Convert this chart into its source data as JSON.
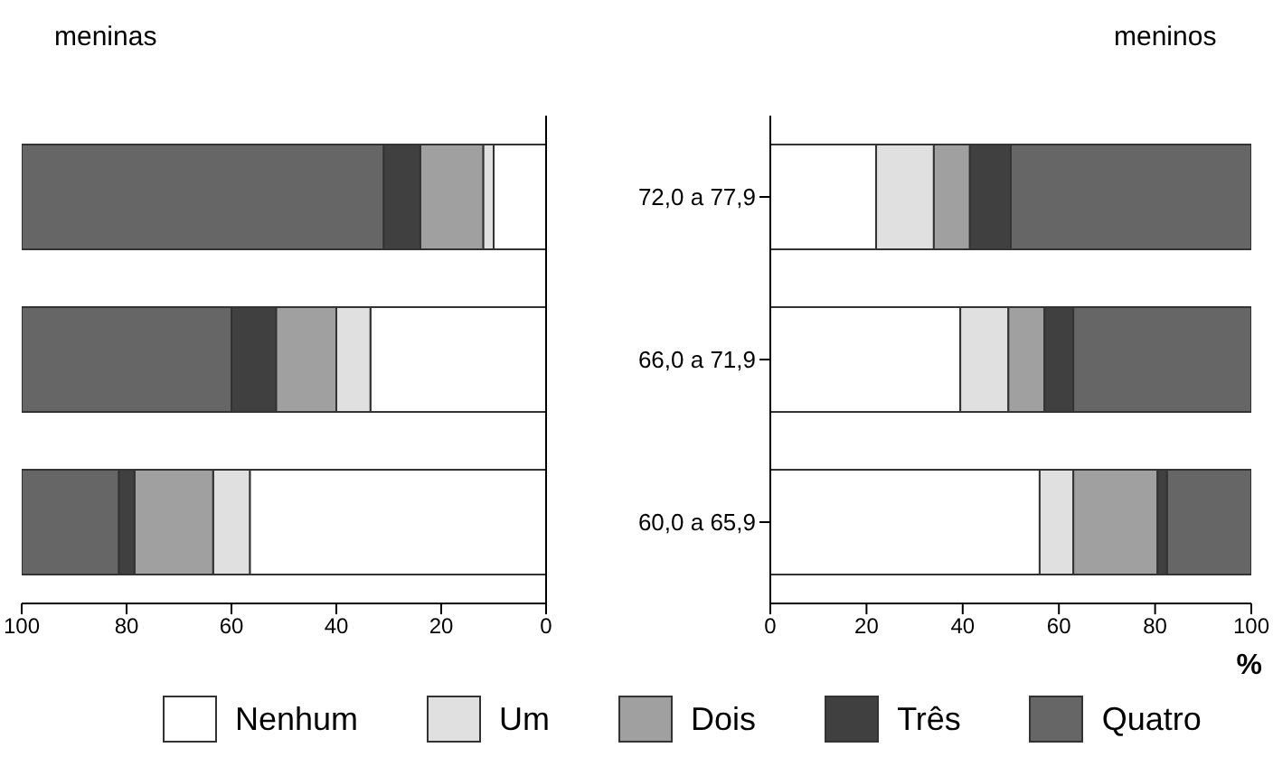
{
  "chart_data": [
    {
      "type": "bar",
      "orientation": "horizontal",
      "stacked": true,
      "title": "meninas",
      "categories": [
        null,
        null,
        null
      ],
      "xlim": [
        100,
        0
      ],
      "xticks": [
        100,
        80,
        60,
        40,
        20,
        0
      ],
      "tick_labels": "x",
      "grid": false,
      "series": [
        {
          "color": "#ffffff",
          "values": [
            10,
            33.5,
            56.5
          ]
        },
        {
          "color": "#e0e0e0",
          "values": [
            2,
            6.5,
            7
          ]
        },
        {
          "color": "#a0a0a0",
          "values": [
            12,
            11.5,
            15
          ]
        },
        {
          "color": "#404040",
          "values": [
            7,
            8.5,
            3
          ]
        },
        {
          "color": "#666666",
          "values": [
            69,
            40,
            18.5
          ]
        }
      ]
    },
    {
      "type": "bar",
      "orientation": "horizontal",
      "stacked": true,
      "title": "meninos",
      "xlabel": "%",
      "categories": [
        "72,0 a 77,9",
        "66,0 a 71,9",
        "60,0 a 65,9"
      ],
      "xlim": [
        0,
        100
      ],
      "xticks": [
        0,
        20,
        40,
        60,
        80,
        100
      ],
      "grid": false,
      "legend": "bottom",
      "series": [
        {
          "name": "Nenhum",
          "color": "#ffffff",
          "values": [
            22,
            39.5,
            56
          ]
        },
        {
          "name": "Um",
          "color": "#e0e0e0",
          "values": [
            12,
            10,
            7
          ]
        },
        {
          "name": "Dois",
          "color": "#a0a0a0",
          "values": [
            7.5,
            7.5,
            17.5
          ]
        },
        {
          "name": "Três",
          "color": "#404040",
          "values": [
            8.5,
            6,
            2
          ]
        },
        {
          "name": "Quatro",
          "color": "#666666",
          "values": [
            50,
            37,
            17.5
          ]
        }
      ]
    }
  ]
}
